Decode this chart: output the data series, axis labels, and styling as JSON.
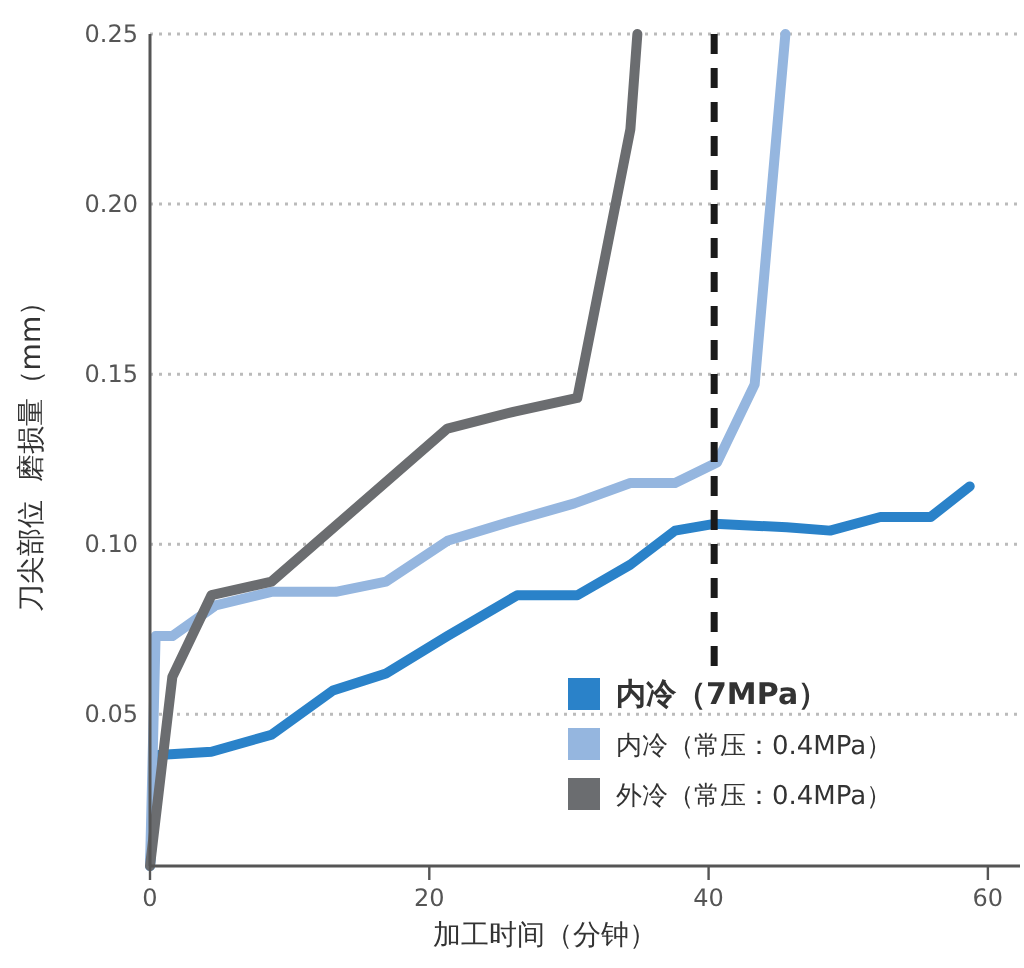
{
  "chart_data": {
    "type": "line",
    "xlabel": "加工时间（分钟）",
    "ylabel": "刀尖部位  磨损量（mm）",
    "xlim": [
      0,
      62.3
    ],
    "xticks": [
      0,
      20,
      40,
      60
    ],
    "ylim": [
      0.0054,
      0.25
    ],
    "yticks": [
      {
        "value": 0.05,
        "label": "0.05"
      },
      {
        "value": 0.1,
        "label": "0.10"
      },
      {
        "value": 0.15,
        "label": "0.15"
      },
      {
        "value": 0.2,
        "label": "0.20"
      },
      {
        "value": 0.25,
        "label": "0.25"
      }
    ],
    "grid": "y",
    "legend": "bottom right",
    "line_style": "solid",
    "marker": "none",
    "ref_lines": [
      {
        "axis": "x",
        "value": 40.4,
        "color": "#1a1a1a",
        "line_style": "dashed"
      }
    ],
    "series": [
      {
        "name": "内冷（7MPa）",
        "color": "#2a82c9",
        "x": [
          0,
          0.6,
          4.4,
          8.7,
          13.1,
          16.9,
          21.3,
          26.3,
          30.6,
          34.4,
          37.6,
          40.4,
          45.6,
          48.7,
          52.3,
          55.9,
          58.7
        ],
        "values": [
          0.0054,
          0.038,
          0.039,
          0.044,
          0.057,
          0.062,
          0.073,
          0.085,
          0.085,
          0.094,
          0.104,
          0.106,
          0.105,
          0.104,
          0.108,
          0.108,
          0.117
        ]
      },
      {
        "name": "内冷（常压：0.4MPa）",
        "color": "#95b6df",
        "x": [
          0,
          0.4,
          1.6,
          4.7,
          8.7,
          13.3,
          16.9,
          21.3,
          26.1,
          30.4,
          34.4,
          37.6,
          40.6,
          43.3,
          45.5
        ],
        "values": [
          0.0054,
          0.073,
          0.073,
          0.082,
          0.086,
          0.086,
          0.089,
          0.101,
          0.107,
          0.112,
          0.118,
          0.118,
          0.124,
          0.147,
          0.25
        ]
      },
      {
        "name": "外冷（常压：0.4MPa）",
        "color": "#6b6d70",
        "x": [
          0,
          1.6,
          4.4,
          8.7,
          21.3,
          26.1,
          30.6,
          34.4,
          34.9
        ],
        "values": [
          0.0054,
          0.061,
          0.085,
          0.089,
          0.134,
          0.139,
          0.143,
          0.222,
          0.25
        ]
      }
    ]
  }
}
